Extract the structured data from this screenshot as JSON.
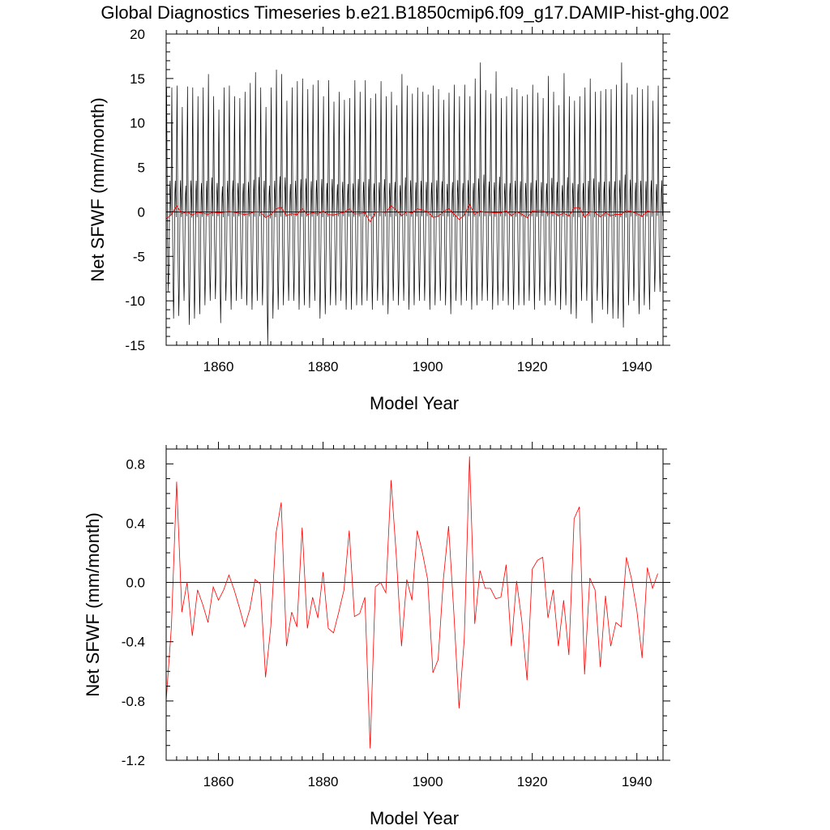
{
  "title": "Global Diagnostics Timeseries b.e21.B1850cmip6.f09_g17.DAMIP-hist-ghg.002",
  "chart_data": [
    {
      "type": "line",
      "xlabel": "Model Year",
      "ylabel": "Net SFWF (mm/month)",
      "xlim": [
        1850,
        1945
      ],
      "ylim": [
        -15,
        20
      ],
      "xticks": [
        1860,
        1880,
        1900,
        1920,
        1940
      ],
      "yticks": [
        -15,
        -10,
        -5,
        0,
        5,
        10,
        15,
        20
      ],
      "ytick_labels": [
        "-15",
        "-10",
        "-5",
        "0",
        "5",
        "10",
        "15",
        "20"
      ],
      "zero_line": true,
      "grid": false,
      "series": [
        {
          "kind": "monthly",
          "color": "#000000",
          "annual_peaks": [
            14.0,
            14.0,
            14.2,
            11.8,
            14.1,
            14.0,
            13.0,
            14.0,
            15.5,
            13.0,
            11.5,
            14.0,
            14.2,
            13.0,
            12.8,
            13.5,
            14.5,
            15.7,
            14.0,
            11.8,
            14.0,
            16.0,
            15.5,
            12.5,
            14.0,
            14.7,
            15.0,
            13.8,
            14.3,
            14.8,
            13.0,
            14.8,
            12.4,
            13.5,
            12.6,
            12.8,
            14.8,
            13.5,
            14.8,
            12.8,
            13.3,
            14.7,
            13.0,
            13.5,
            12.0,
            15.5,
            14.2,
            13.3,
            14.0,
            13.5,
            13.2,
            14.2,
            13.8,
            12.6,
            13.4,
            14.3,
            13.0,
            14.3,
            13.0,
            15.0,
            16.8,
            13.7,
            13.3,
            15.8,
            12.8,
            13.0,
            14.0,
            13.8,
            13.0,
            13.2,
            14.3,
            13.4,
            12.8,
            15.3,
            13.5,
            12.0,
            15.6,
            13.0,
            12.5,
            13.0,
            14.0,
            15.0,
            13.5,
            13.6,
            13.8,
            13.8,
            14.3,
            16.8,
            14.5,
            13.2,
            14.0,
            13.8,
            14.2,
            12.5,
            14.2
          ],
          "annual_troughs": [
            -9.0,
            -12.0,
            -11.7,
            -10.0,
            -12.7,
            -12.0,
            -11.5,
            -10.5,
            -10.0,
            -9.8,
            -12.5,
            -10.0,
            -11.0,
            -10.0,
            -9.8,
            -10.5,
            -11.0,
            -10.0,
            -10.5,
            -15.0,
            -12.0,
            -11.0,
            -10.5,
            -10.0,
            -10.0,
            -11.0,
            -10.5,
            -10.8,
            -10.0,
            -12.0,
            -11.5,
            -10.5,
            -10.5,
            -10.0,
            -11.0,
            -11.0,
            -10.5,
            -10.5,
            -10.0,
            -11.0,
            -10.0,
            -10.5,
            -11.5,
            -10.0,
            -10.5,
            -10.0,
            -11.0,
            -10.5,
            -10.0,
            -10.0,
            -11.0,
            -10.5,
            -10.0,
            -10.5,
            -11.5,
            -10.0,
            -10.5,
            -10.0,
            -11.0,
            -10.5,
            -10.0,
            -10.0,
            -11.0,
            -10.5,
            -10.0,
            -10.5,
            -11.0,
            -10.5,
            -10.5,
            -10.0,
            -11.0,
            -10.0,
            -10.5,
            -10.0,
            -10.5,
            -11.0,
            -10.5,
            -11.5,
            -12.0,
            -10.0,
            -10.0,
            -12.5,
            -10.0,
            -11.0,
            -11.5,
            -12.0,
            -12.0,
            -13.0,
            -10.5,
            -10.0,
            -11.5,
            -10.5,
            -11.0,
            -9.0,
            -9.0
          ]
        },
        {
          "kind": "annual",
          "color": "#ff0000",
          "same_as": "annual_mean"
        }
      ]
    },
    {
      "type": "line",
      "xlabel": "Model Year",
      "ylabel": "Net SFWF (mm/month)",
      "xlim": [
        1850,
        1945
      ],
      "ylim": [
        -1.2,
        0.9
      ],
      "xticks": [
        1860,
        1880,
        1900,
        1920,
        1940
      ],
      "yticks": [
        -1.2,
        -0.8,
        -0.4,
        0.0,
        0.4,
        0.8
      ],
      "ytick_labels": [
        "-1.2",
        "-0.8",
        "-0.4",
        "0.0",
        "0.4",
        "0.8"
      ],
      "zero_line": true,
      "grid": false,
      "series": [
        {
          "kind": "annual_mean",
          "color": "#ff0000",
          "x": [
            1850,
            1851,
            1852,
            1853,
            1854,
            1855,
            1856,
            1857,
            1858,
            1859,
            1860,
            1861,
            1862,
            1863,
            1864,
            1865,
            1866,
            1867,
            1868,
            1869,
            1870,
            1871,
            1872,
            1873,
            1874,
            1875,
            1876,
            1877,
            1878,
            1879,
            1880,
            1881,
            1882,
            1883,
            1884,
            1885,
            1886,
            1887,
            1888,
            1889,
            1890,
            1891,
            1892,
            1893,
            1894,
            1895,
            1896,
            1897,
            1898,
            1899,
            1900,
            1901,
            1902,
            1903,
            1904,
            1905,
            1906,
            1907,
            1908,
            1909,
            1910,
            1911,
            1912,
            1913,
            1914,
            1915,
            1916,
            1917,
            1918,
            1919,
            1920,
            1921,
            1922,
            1923,
            1924,
            1925,
            1926,
            1927,
            1928,
            1929,
            1930,
            1931,
            1932,
            1933,
            1934,
            1935,
            1936,
            1937,
            1938,
            1939,
            1940,
            1941,
            1942,
            1943,
            1944
          ],
          "y": [
            -0.8,
            -0.3,
            0.68,
            -0.2,
            0.0,
            -0.36,
            -0.05,
            -0.15,
            -0.27,
            -0.03,
            -0.12,
            -0.05,
            0.05,
            -0.05,
            -0.17,
            -0.3,
            -0.18,
            0.02,
            -0.01,
            -0.64,
            -0.3,
            0.33,
            0.54,
            -0.43,
            -0.2,
            -0.3,
            0.37,
            -0.31,
            -0.1,
            -0.24,
            0.07,
            -0.31,
            -0.34,
            -0.2,
            -0.05,
            0.35,
            -0.23,
            -0.21,
            -0.1,
            -1.12,
            -0.03,
            0.0,
            -0.07,
            0.69,
            0.18,
            -0.43,
            0.02,
            -0.12,
            0.35,
            0.2,
            0.02,
            -0.61,
            -0.52,
            0.02,
            0.38,
            -0.2,
            -0.85,
            -0.38,
            0.85,
            -0.28,
            0.08,
            -0.04,
            -0.04,
            -0.11,
            -0.1,
            0.12,
            -0.43,
            0.01,
            -0.26,
            -0.66,
            0.09,
            0.15,
            0.17,
            -0.24,
            -0.05,
            -0.43,
            -0.12,
            -0.49,
            0.43,
            0.51,
            -0.62,
            0.03,
            -0.05,
            -0.57,
            -0.09,
            -0.43,
            -0.27,
            -0.3,
            0.17,
            0.02,
            -0.19,
            -0.51,
            0.1,
            -0.04,
            0.06
          ]
        }
      ]
    }
  ]
}
